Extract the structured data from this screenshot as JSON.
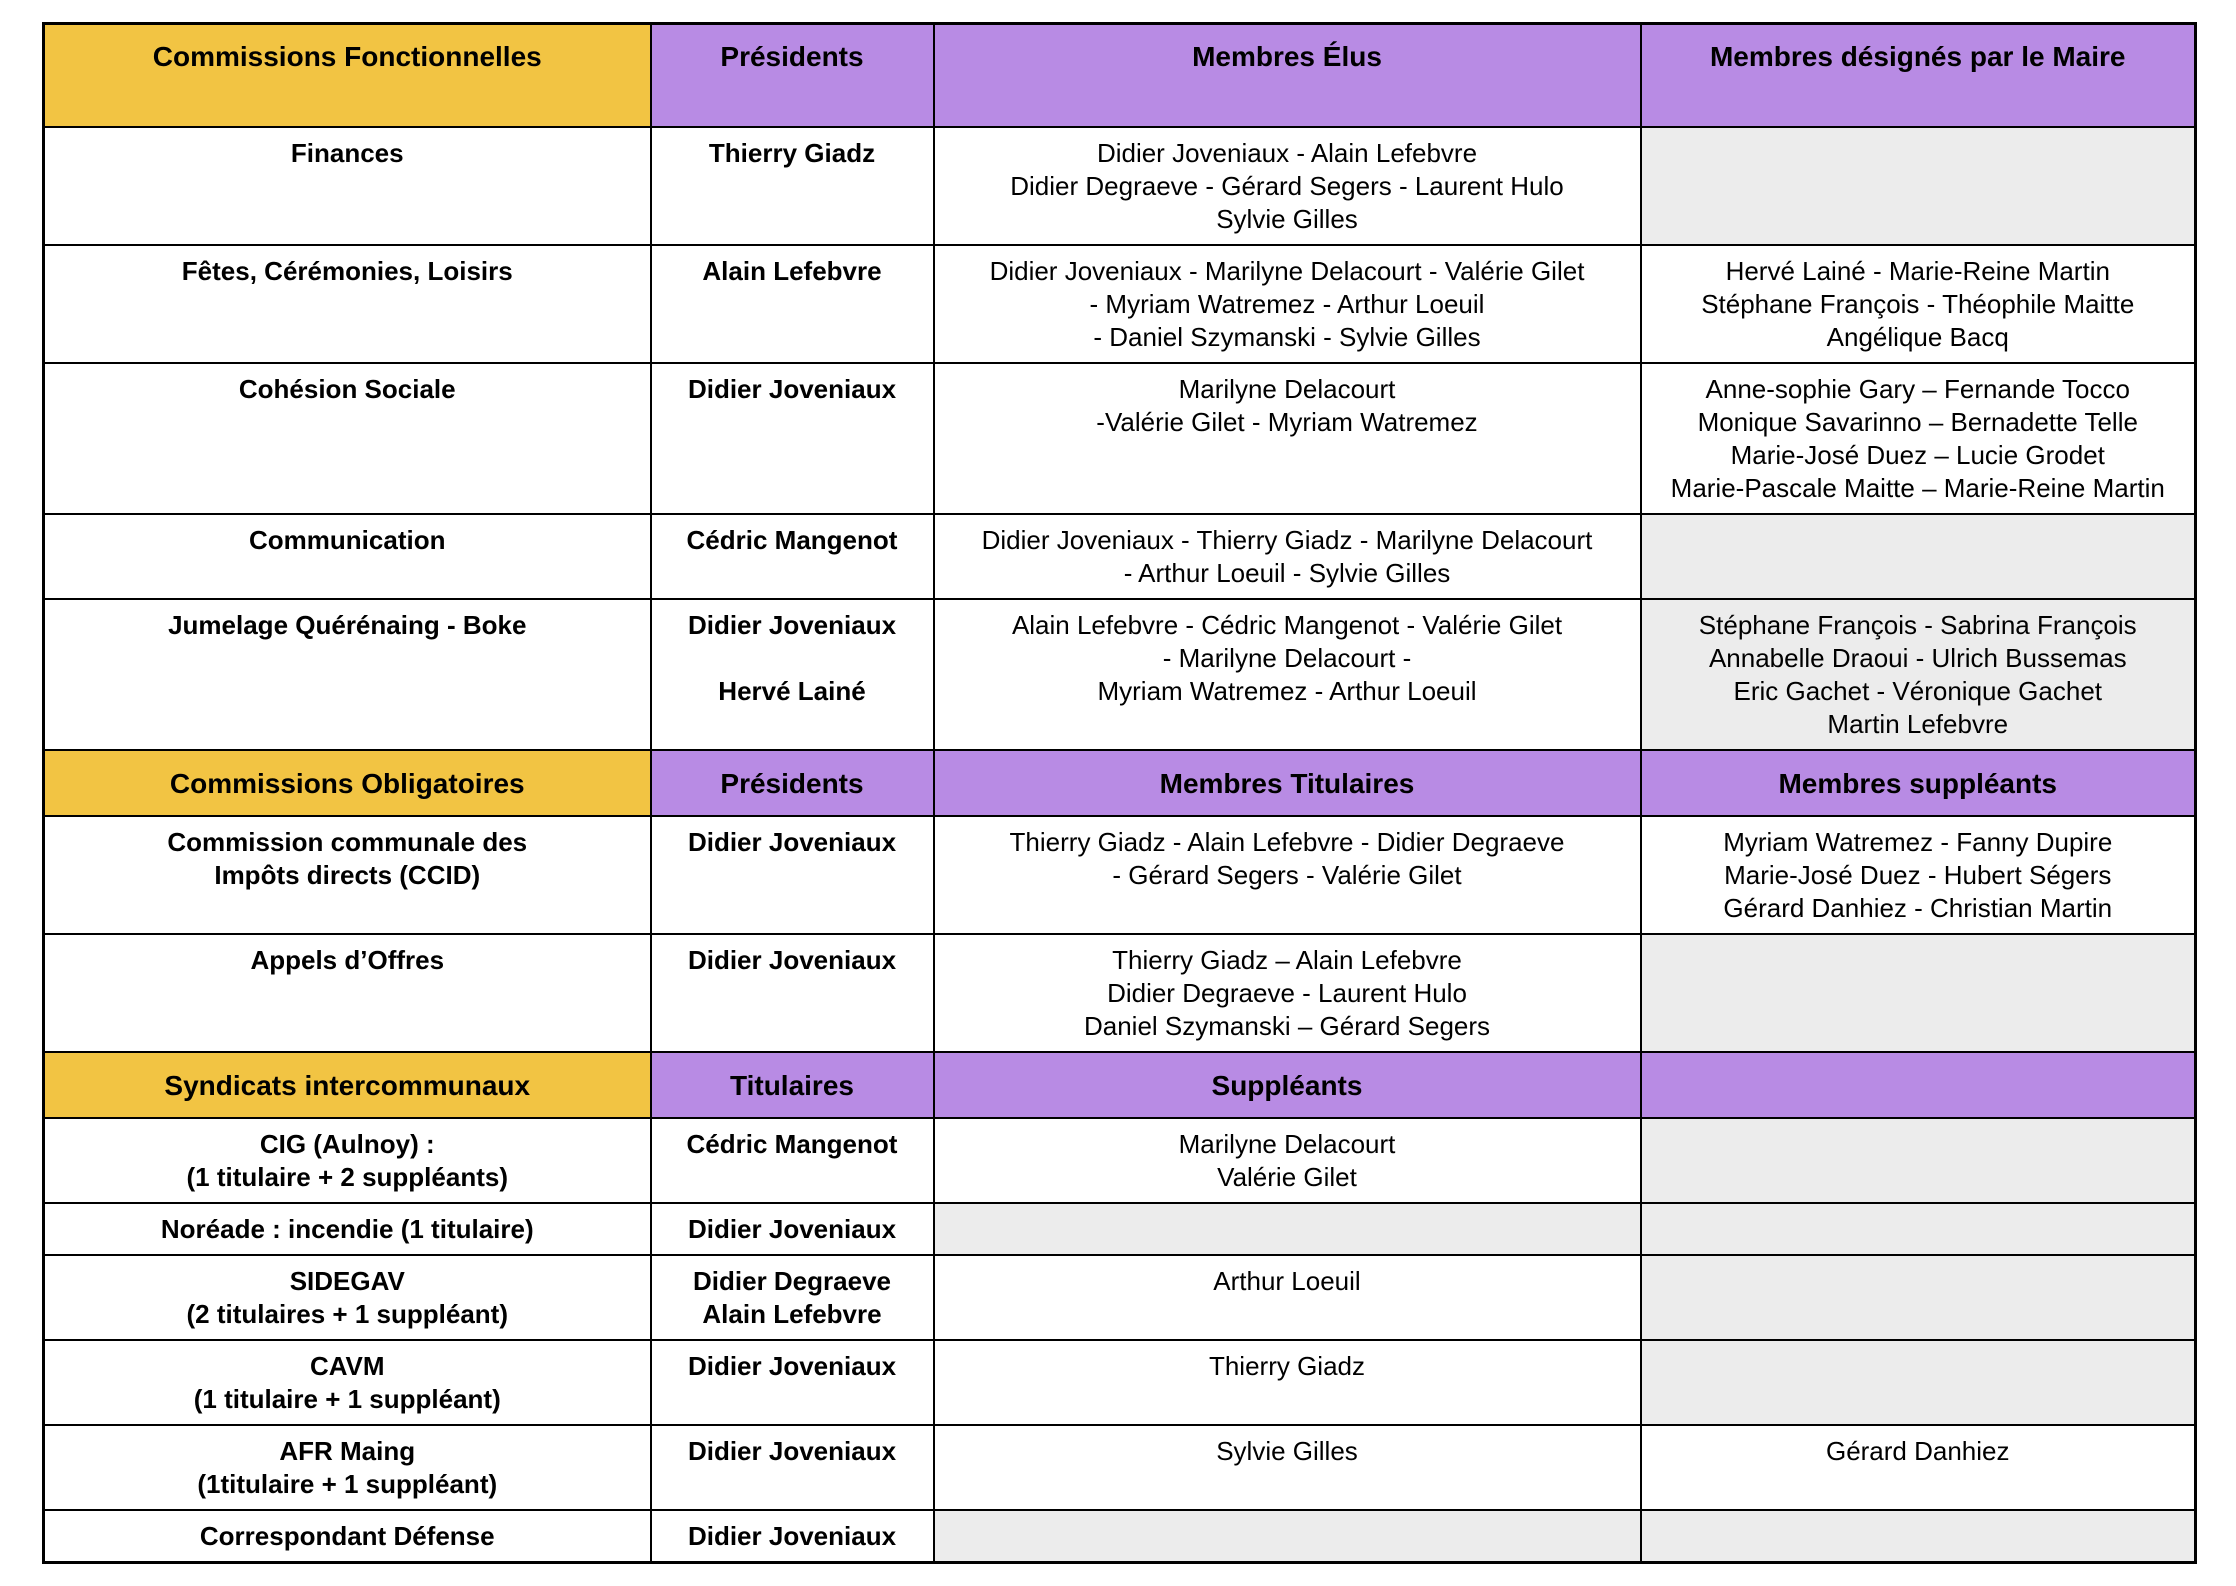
{
  "palette": {
    "header_gold": "#F2C443",
    "header_purple": "#B88BE4",
    "cell_shaded": "#ECECEC",
    "border": "#000000",
    "page_background": "#FFFFFF"
  },
  "table": {
    "columns": 4,
    "sections": [
      {
        "name": "commissions-fonctionnelles",
        "header": [
          "Commissions Fonctionnelles",
          "Présidents",
          "Membres Élus",
          "Membres désignés par le Maire"
        ],
        "rows": [
          {
            "cells": [
              {
                "lines": [
                  "Finances"
                ]
              },
              {
                "lines": [
                  "Thierry Giadz"
                ]
              },
              {
                "lines": [
                  "Didier Joveniaux - Alain Lefebvre",
                  "Didier Degraeve - Gérard Segers - Laurent Hulo",
                  "Sylvie Gilles"
                ]
              },
              {
                "lines": [],
                "shaded": true
              }
            ]
          },
          {
            "cells": [
              {
                "lines": [
                  "Fêtes, Cérémonies, Loisirs"
                ]
              },
              {
                "lines": [
                  "Alain Lefebvre"
                ]
              },
              {
                "lines": [
                  "Didier Joveniaux - Marilyne Delacourt - Valérie Gilet",
                  "- Myriam Watremez - Arthur Loeuil",
                  "- Daniel Szymanski - Sylvie Gilles"
                ]
              },
              {
                "lines": [
                  "Hervé Lainé - Marie-Reine Martin",
                  "Stéphane François - Théophile Maitte",
                  "Angélique Bacq"
                ]
              }
            ]
          },
          {
            "cells": [
              {
                "lines": [
                  "Cohésion Sociale"
                ]
              },
              {
                "lines": [
                  "Didier Joveniaux"
                ]
              },
              {
                "lines": [
                  "Marilyne Delacourt",
                  "-Valérie Gilet - Myriam Watremez"
                ]
              },
              {
                "lines": [
                  "Anne-sophie Gary – Fernande Tocco",
                  "Monique Savarinno – Bernadette Telle",
                  "Marie-José Duez – Lucie Grodet",
                  "Marie-Pascale Maitte – Marie-Reine Martin"
                ]
              }
            ]
          },
          {
            "cells": [
              {
                "lines": [
                  "Communication"
                ]
              },
              {
                "lines": [
                  "Cédric Mangenot"
                ]
              },
              {
                "lines": [
                  "Didier Joveniaux - Thierry Giadz - Marilyne Delacourt",
                  "- Arthur Loeuil - Sylvie Gilles"
                ]
              },
              {
                "lines": [],
                "shaded": true
              }
            ]
          },
          {
            "cells": [
              {
                "lines": [
                  "Jumelage Quérénaing - Boke"
                ],
                "vmid": true
              },
              {
                "lines": [
                  "Didier Joveniaux",
                  "",
                  "Hervé Lainé"
                ]
              },
              {
                "lines": [
                  "Alain Lefebvre - Cédric Mangenot - Valérie Gilet",
                  "- Marilyne Delacourt -",
                  "Myriam Watremez - Arthur Loeuil"
                ]
              },
              {
                "lines": [
                  "Stéphane François - Sabrina François",
                  "Annabelle Draoui - Ulrich Bussemas",
                  "Eric Gachet - Véronique Gachet",
                  "Martin Lefebvre"
                ],
                "shaded": true
              }
            ]
          }
        ]
      },
      {
        "name": "commissions-obligatoires",
        "header": [
          "Commissions Obligatoires",
          "Présidents",
          "Membres Titulaires",
          "Membres suppléants"
        ],
        "rows": [
          {
            "cells": [
              {
                "lines": [
                  "Commission communale des",
                  "Impôts directs (CCID)"
                ]
              },
              {
                "lines": [
                  "Didier Joveniaux"
                ]
              },
              {
                "lines": [
                  "Thierry Giadz - Alain Lefebvre - Didier Degraeve",
                  "- Gérard Segers - Valérie Gilet"
                ]
              },
              {
                "lines": [
                  "Myriam Watremez - Fanny Dupire",
                  "Marie-José Duez - Hubert Ségers",
                  "Gérard Danhiez - Christian Martin"
                ]
              }
            ]
          },
          {
            "cells": [
              {
                "lines": [
                  "Appels d’Offres"
                ]
              },
              {
                "lines": [
                  "Didier Joveniaux"
                ]
              },
              {
                "lines": [
                  "Thierry Giadz – Alain Lefebvre",
                  "Didier Degraeve - Laurent Hulo",
                  "Daniel Szymanski – Gérard Segers"
                ]
              },
              {
                "lines": [],
                "shaded": true
              }
            ]
          }
        ]
      },
      {
        "name": "syndicats-intercommunaux",
        "header": [
          "Syndicats intercommunaux",
          "Titulaires",
          "Suppléants",
          ""
        ],
        "rows": [
          {
            "cells": [
              {
                "lines": [
                  "CIG (Aulnoy) :",
                  "(1 titulaire + 2 suppléants)"
                ]
              },
              {
                "lines": [
                  "Cédric Mangenot"
                ]
              },
              {
                "lines": [
                  "Marilyne Delacourt",
                  "Valérie Gilet"
                ]
              },
              {
                "lines": [],
                "shaded": true
              }
            ]
          },
          {
            "cells": [
              {
                "lines": [
                  "Noréade : incendie (1 titulaire)"
                ]
              },
              {
                "lines": [
                  "Didier Joveniaux"
                ]
              },
              {
                "lines": [],
                "shaded": true
              },
              {
                "lines": [],
                "shaded": true
              }
            ]
          },
          {
            "cells": [
              {
                "lines": [
                  "SIDEGAV",
                  "(2 titulaires + 1 suppléant)"
                ]
              },
              {
                "lines": [
                  "Didier Degraeve",
                  "Alain Lefebvre"
                ]
              },
              {
                "lines": [
                  "Arthur Loeuil"
                ]
              },
              {
                "lines": [],
                "shaded": true
              }
            ]
          },
          {
            "cells": [
              {
                "lines": [
                  "CAVM",
                  "(1 titulaire + 1 suppléant)"
                ]
              },
              {
                "lines": [
                  "Didier Joveniaux"
                ]
              },
              {
                "lines": [
                  "Thierry Giadz"
                ]
              },
              {
                "lines": [],
                "shaded": true
              }
            ]
          },
          {
            "cells": [
              {
                "lines": [
                  "AFR Maing",
                  "(1titulaire + 1 suppléant)"
                ]
              },
              {
                "lines": [
                  "Didier Joveniaux"
                ]
              },
              {
                "lines": [
                  "Sylvie Gilles"
                ]
              },
              {
                "lines": [
                  "Gérard Danhiez"
                ]
              }
            ]
          },
          {
            "cells": [
              {
                "lines": [
                  "Correspondant Défense"
                ]
              },
              {
                "lines": [
                  "Didier Joveniaux"
                ]
              },
              {
                "lines": [],
                "shaded": true
              },
              {
                "lines": [],
                "shaded": true
              }
            ]
          }
        ]
      }
    ]
  }
}
